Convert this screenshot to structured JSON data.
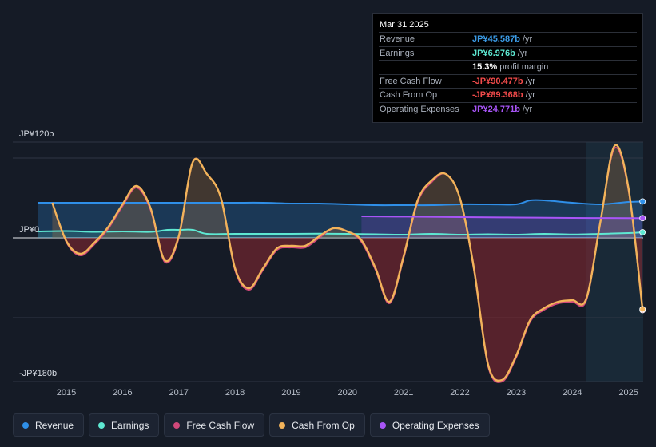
{
  "tooltip": {
    "date": "Mar 31 2025",
    "rows": [
      {
        "label": "Revenue",
        "value": "JP¥45.587b",
        "suffix": " /yr",
        "color": "#3b9be6"
      },
      {
        "label": "Earnings",
        "value": "JP¥6.976b",
        "suffix": " /yr",
        "color": "#5ee8d2"
      },
      {
        "label": "",
        "value": "15.3%",
        "suffix": " profit margin",
        "color": "#ffffff"
      },
      {
        "label": "Free Cash Flow",
        "value": "-JP¥90.477b",
        "suffix": " /yr",
        "color": "#f04a4a"
      },
      {
        "label": "Cash From Op",
        "value": "-JP¥89.368b",
        "suffix": " /yr",
        "color": "#f04a4a"
      },
      {
        "label": "Operating Expenses",
        "value": "JP¥24.771b",
        "suffix": " /yr",
        "color": "#a855f7"
      }
    ]
  },
  "legend": [
    {
      "label": "Revenue",
      "color": "#2f8fe8"
    },
    {
      "label": "Earnings",
      "color": "#5ee8d2"
    },
    {
      "label": "Free Cash Flow",
      "color": "#d0487a"
    },
    {
      "label": "Cash From Op",
      "color": "#f2b35a"
    },
    {
      "label": "Operating Expenses",
      "color": "#a855f7"
    }
  ],
  "chart_data": {
    "type": "area",
    "title": "",
    "xlabel": "",
    "ylabel": "",
    "ylim": [
      -180,
      120
    ],
    "y_ticks": [
      {
        "value": 120,
        "label": "JP¥120b"
      },
      {
        "value": 0,
        "label": "JP¥0"
      },
      {
        "value": -180,
        "label": "-JP¥180b"
      }
    ],
    "x_ticks": [
      "2015",
      "2016",
      "2017",
      "2018",
      "2019",
      "2020",
      "2021",
      "2022",
      "2023",
      "2024",
      "2025"
    ],
    "x_range": [
      2014.5,
      2025.25
    ],
    "forecast_region": [
      2024.25,
      2025.25
    ],
    "series": [
      {
        "name": "Revenue",
        "color": "#2f8fe8",
        "x": [
          2014.5,
          2015.0,
          2015.5,
          2016.0,
          2016.5,
          2017.0,
          2017.5,
          2018.0,
          2018.5,
          2019.0,
          2019.5,
          2020.0,
          2020.5,
          2021.0,
          2021.5,
          2022.0,
          2022.5,
          2023.0,
          2023.25,
          2023.5,
          2024.0,
          2024.5,
          2025.0,
          2025.25
        ],
        "y": [
          44,
          44,
          44,
          44,
          44,
          44,
          44,
          44,
          44,
          43,
          43,
          42,
          41,
          41,
          41,
          42,
          42,
          42,
          47,
          47,
          44,
          42,
          45,
          45.6
        ]
      },
      {
        "name": "Earnings",
        "color": "#5ee8d2",
        "x": [
          2014.5,
          2015.0,
          2015.5,
          2016.0,
          2016.5,
          2016.8,
          2017.0,
          2017.25,
          2017.5,
          2018.0,
          2018.5,
          2019.0,
          2019.5,
          2020.0,
          2020.5,
          2021.0,
          2021.5,
          2022.0,
          2022.5,
          2023.0,
          2023.5,
          2024.0,
          2024.5,
          2025.0,
          2025.25
        ],
        "y": [
          8,
          8.5,
          7.5,
          8,
          7.5,
          10,
          10,
          10,
          5,
          5,
          5,
          5,
          5.2,
          5,
          4.5,
          4,
          5,
          4,
          4.5,
          4,
          5,
          4.2,
          5,
          6,
          6.976
        ]
      },
      {
        "name": "Free Cash Flow",
        "color": "#d0487a",
        "x": [
          2014.75,
          2015.0,
          2015.25,
          2015.5,
          2015.75,
          2016.0,
          2016.25,
          2016.5,
          2016.75,
          2017.0,
          2017.25,
          2017.5,
          2017.75,
          2018.0,
          2018.25,
          2018.5,
          2018.75,
          2019.0,
          2019.25,
          2019.5,
          2019.75,
          2020.0,
          2020.25,
          2020.5,
          2020.75,
          2021.0,
          2021.25,
          2021.5,
          2021.75,
          2022.0,
          2022.25,
          2022.5,
          2022.75,
          2023.0,
          2023.25,
          2023.5,
          2023.75,
          2024.0,
          2024.25,
          2024.5,
          2024.75,
          2025.0,
          2025.25
        ],
        "y": [
          44,
          -5,
          -22,
          -8,
          12,
          40,
          63,
          35,
          -30,
          0,
          95,
          80,
          50,
          -40,
          -65,
          -40,
          -15,
          -12,
          -12,
          0,
          12,
          8,
          -5,
          -40,
          -82,
          -25,
          45,
          70,
          80,
          50,
          -40,
          -160,
          -180,
          -150,
          -105,
          -90,
          -82,
          -80,
          -78,
          20,
          112,
          60,
          -90.477
        ]
      },
      {
        "name": "Cash From Op",
        "color": "#f2b35a",
        "x": [
          2014.75,
          2015.0,
          2015.25,
          2015.5,
          2015.75,
          2016.0,
          2016.25,
          2016.5,
          2016.75,
          2017.0,
          2017.25,
          2017.5,
          2017.75,
          2018.0,
          2018.25,
          2018.5,
          2018.75,
          2019.0,
          2019.25,
          2019.5,
          2019.75,
          2020.0,
          2020.25,
          2020.5,
          2020.75,
          2021.0,
          2021.25,
          2021.5,
          2021.75,
          2022.0,
          2022.25,
          2022.5,
          2022.75,
          2023.0,
          2023.25,
          2023.5,
          2023.75,
          2024.0,
          2024.25,
          2024.5,
          2024.75,
          2025.0,
          2025.25
        ],
        "y": [
          44,
          -4,
          -20,
          -6,
          14,
          42,
          65,
          37,
          -28,
          2,
          95,
          80,
          50,
          -38,
          -63,
          -38,
          -13,
          -10,
          -10,
          2,
          12,
          8,
          -3,
          -38,
          -80,
          -23,
          47,
          72,
          80,
          50,
          -38,
          -158,
          -178,
          -148,
          -103,
          -88,
          -80,
          -78,
          -76,
          20,
          115,
          62,
          -89.368
        ]
      },
      {
        "name": "Operating Expenses",
        "color": "#a855f7",
        "x": [
          2020.25,
          2021.0,
          2022.0,
          2023.0,
          2024.0,
          2025.0,
          2025.25
        ],
        "y": [
          27,
          26.6,
          26,
          25.5,
          25,
          24.8,
          24.771
        ]
      }
    ]
  }
}
